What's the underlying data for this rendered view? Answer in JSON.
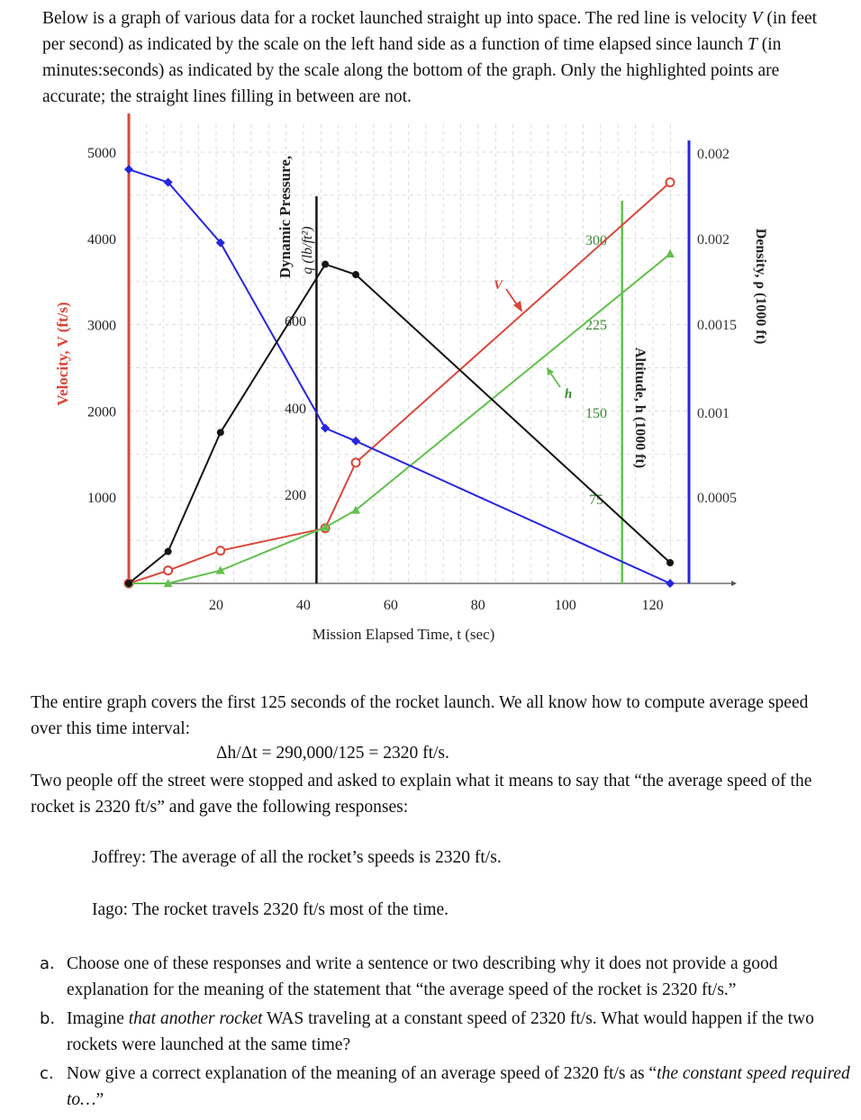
{
  "intro": {
    "p1": "Below is a graph of various data for a rocket launched straight up into space. The red line is velocity ",
    "v": "V",
    "p2": " (in feet per second) as indicated by the scale on the left hand side as a function of time elapsed since launch ",
    "t": "T",
    "p3": " (in minutes:seconds) as indicated by the scale along the bottom of the graph. Only the highlighted points are accurate; the straight lines filling in between are not."
  },
  "colors": {
    "velocity": "#d9473a",
    "altitude": "#62c04f",
    "density": "#2626e0",
    "pressure": "#151515"
  },
  "chart_data": {
    "type": "line",
    "xlabel": "Mission Elapsed Time, t (sec)",
    "x_ticks": [
      "20",
      "40",
      "60",
      "80",
      "100",
      "120"
    ],
    "xlim": [
      0,
      128
    ],
    "axes": {
      "velocity": {
        "label": "Velocity, V (ft/s)",
        "ticks": [
          "1000",
          "2000",
          "3000",
          "4000",
          "5000"
        ],
        "ylim": [
          0,
          5200
        ]
      },
      "pressure": {
        "label_line1": "Dynamic Pressure,",
        "label_line2": "q (lb/ft²)",
        "ticks": [
          "200",
          "400",
          "600"
        ],
        "position_t": 43
      },
      "altitude": {
        "label": "Altitude, h (1000 ft)",
        "ticks": [
          "75",
          "150",
          "225",
          "300"
        ],
        "position_t": 113
      },
      "density": {
        "label": "Density, ρ (1000 ft)",
        "ticks": [
          "0.0005",
          "0.001",
          "0.0015",
          "0.002",
          "0.002"
        ]
      }
    },
    "curve_labels": {
      "velocity": "V",
      "altitude": "h"
    },
    "series": [
      {
        "name": "Velocity",
        "axis": "velocity",
        "x": [
          0,
          9,
          21,
          45,
          52,
          124
        ],
        "y": [
          0,
          150,
          380,
          640,
          1400,
          4650
        ]
      },
      {
        "name": "Altitude",
        "axis": "velocity",
        "x": [
          0,
          9,
          21,
          45,
          52,
          124
        ],
        "y": [
          0,
          0,
          150,
          650,
          850,
          3820
        ]
      },
      {
        "name": "Density",
        "axis": "velocity",
        "x": [
          0,
          9,
          21,
          45,
          52,
          124
        ],
        "y": [
          4800,
          4650,
          3950,
          1800,
          1650,
          0
        ]
      },
      {
        "name": "Dynamic Pressure",
        "axis": "velocity",
        "x": [
          0,
          9,
          21,
          45,
          52,
          124
        ],
        "y": [
          0,
          370,
          1750,
          3700,
          3580,
          240
        ]
      }
    ]
  },
  "text": {
    "para1": "The entire graph covers the first 125 seconds of the rocket launch. We all know how to compute average speed over this time interval:",
    "equation": "Δh/Δt = 290,000/125 = 2320 ft/s.",
    "para2": "Two people off the street were stopped and asked to explain what it means to say that “the average speed of the rocket is 2320 ft/s” and gave the following responses:",
    "response1": "Joffrey: The average of all the rocket’s speeds is 2320 ft/s.",
    "response2": "Iago: The rocket travels 2320 ft/s most of the time."
  },
  "questions": {
    "a_label": "a.",
    "a": "Choose one of these responses and write a sentence or two describing why it does not provide a good explanation for the meaning of the statement that “the average speed of the rocket is 2320 ft/s.”",
    "b_label": "b.",
    "b_p1": "Imagine ",
    "b_it": "that another rocket",
    "b_p2": " WAS traveling at a constant speed of 2320 ft/s. What would happen if the two rockets were launched at the same time?",
    "c_label": "c.",
    "c_p1": "Now give a correct explanation of the meaning of an average speed of 2320 ft/s as “",
    "c_it": "the constant speed required to…",
    "c_p2": "”"
  }
}
